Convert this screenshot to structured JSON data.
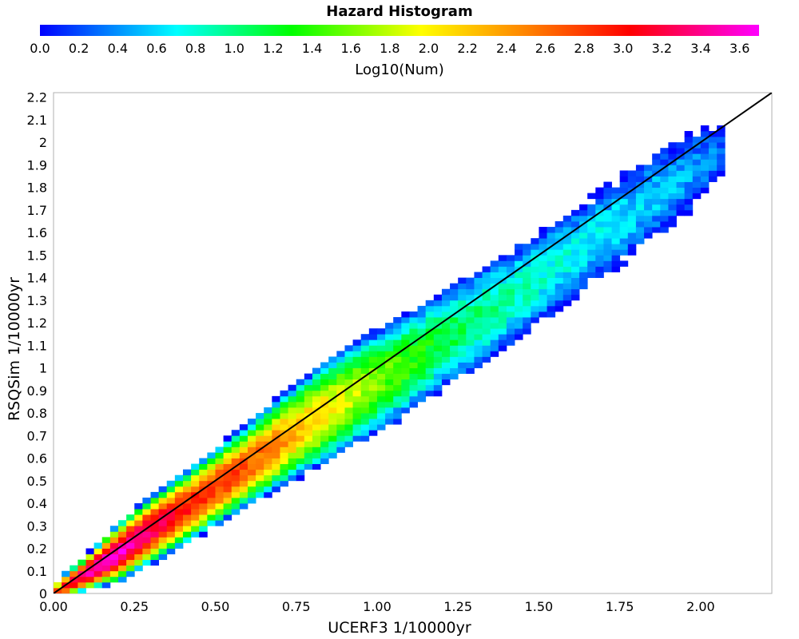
{
  "chart_data": {
    "type": "heatmap",
    "title": "Hazard Histogram",
    "xlabel": "UCERF3 1/10000yr",
    "ylabel": "RSQSim 1/10000yr",
    "xlim": [
      0,
      2.22
    ],
    "ylim": [
      0,
      2.22
    ],
    "x_ticks": [
      "0.00",
      "0.25",
      "0.50",
      "0.75",
      "1.00",
      "1.25",
      "1.50",
      "1.75",
      "2.00"
    ],
    "y_ticks": [
      "0",
      "0.1",
      "0.2",
      "0.3",
      "0.4",
      "0.5",
      "0.6",
      "0.7",
      "0.8",
      "0.9",
      "1",
      "1.1",
      "1.2",
      "1.3",
      "1.4",
      "1.5",
      "1.6",
      "1.7",
      "1.8",
      "1.9",
      "2",
      "2.1",
      "2.2"
    ],
    "bin_width": 0.025,
    "colorbar": {
      "label": "Log10(Num)",
      "range": [
        0,
        3.7
      ],
      "ticks": [
        "0.0",
        "0.2",
        "0.4",
        "0.6",
        "0.8",
        "1.0",
        "1.2",
        "1.4",
        "1.6",
        "1.8",
        "2.0",
        "2.2",
        "2.4",
        "2.6",
        "2.8",
        "3.0",
        "3.2",
        "3.4",
        "3.6"
      ],
      "colors": [
        "#0000ff",
        "#00ffff",
        "#00ff00",
        "#ffff00",
        "#ff8000",
        "#ff0000",
        "#ff00ff"
      ]
    },
    "reference_line": {
      "from": [
        0,
        0
      ],
      "to": [
        2.22,
        2.22
      ],
      "color": "#000000"
    },
    "density_profile": {
      "x": [
        0.0,
        0.1,
        0.2,
        0.3,
        0.45,
        0.6,
        0.75,
        0.9,
        1.05,
        1.2,
        1.35,
        1.5,
        1.65,
        1.8,
        1.95,
        2.05
      ],
      "center_y": [
        0.0,
        0.09,
        0.18,
        0.28,
        0.42,
        0.57,
        0.72,
        0.86,
        0.98,
        1.12,
        1.25,
        1.4,
        1.55,
        1.7,
        1.85,
        1.95
      ],
      "peak_log10": [
        2.6,
        3.5,
        3.6,
        3.3,
        2.9,
        2.7,
        2.3,
        1.9,
        1.5,
        1.2,
        1.0,
        0.8,
        0.7,
        0.6,
        0.5,
        0.3
      ],
      "half_width_y": [
        0.02,
        0.03,
        0.05,
        0.06,
        0.07,
        0.08,
        0.1,
        0.12,
        0.13,
        0.14,
        0.15,
        0.16,
        0.16,
        0.17,
        0.17,
        0.15
      ]
    }
  }
}
